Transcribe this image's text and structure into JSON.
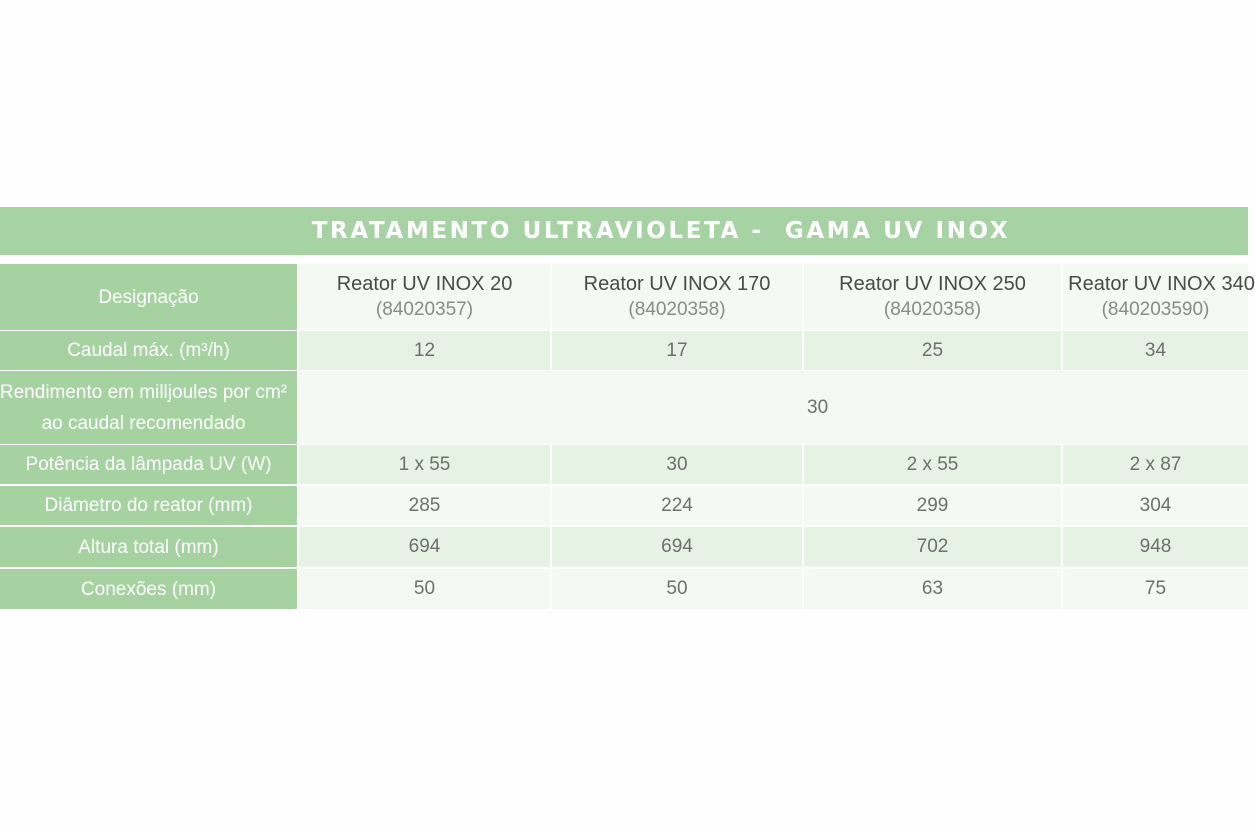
{
  "title": "TRATAMENTO ULTRAVIOLETA -  GAMA UV INOX",
  "colors": {
    "title_bar": "#a7d3a4",
    "label_column": "#a6d2a2",
    "row_light": "#f4f9f3",
    "row_mid": "#e6f2e4"
  },
  "table": {
    "header": {
      "label": "Designação",
      "models": [
        {
          "name": "Reator UV INOX 20",
          "code": "(84020357)"
        },
        {
          "name": "Reator UV INOX 170",
          "code": "(84020358)"
        },
        {
          "name": "Reator UV INOX 250",
          "code": "(84020358)"
        },
        {
          "name": "Reator UV INOX 340",
          "code": "(840203590)"
        }
      ]
    },
    "rows": [
      {
        "label": "Caudal máx. (m³/h)",
        "values": [
          "12",
          "17",
          "25",
          "34"
        ]
      },
      {
        "label": "Rendimento em milljoules por cm² ao caudal recomendado",
        "value": "30"
      },
      {
        "label": "Potência da lâmpada UV (W)",
        "values": [
          "1 x 55",
          "30",
          "2 x 55",
          "2 x 87"
        ]
      },
      {
        "label": "Diâmetro do reator (mm)",
        "values": [
          "285",
          "224",
          "299",
          "304"
        ]
      },
      {
        "label": "Altura total (mm)",
        "values": [
          "694",
          "694",
          "702",
          "948"
        ]
      },
      {
        "label": "Conexões (mm)",
        "values": [
          "50",
          "50",
          "63",
          "75"
        ]
      }
    ]
  }
}
